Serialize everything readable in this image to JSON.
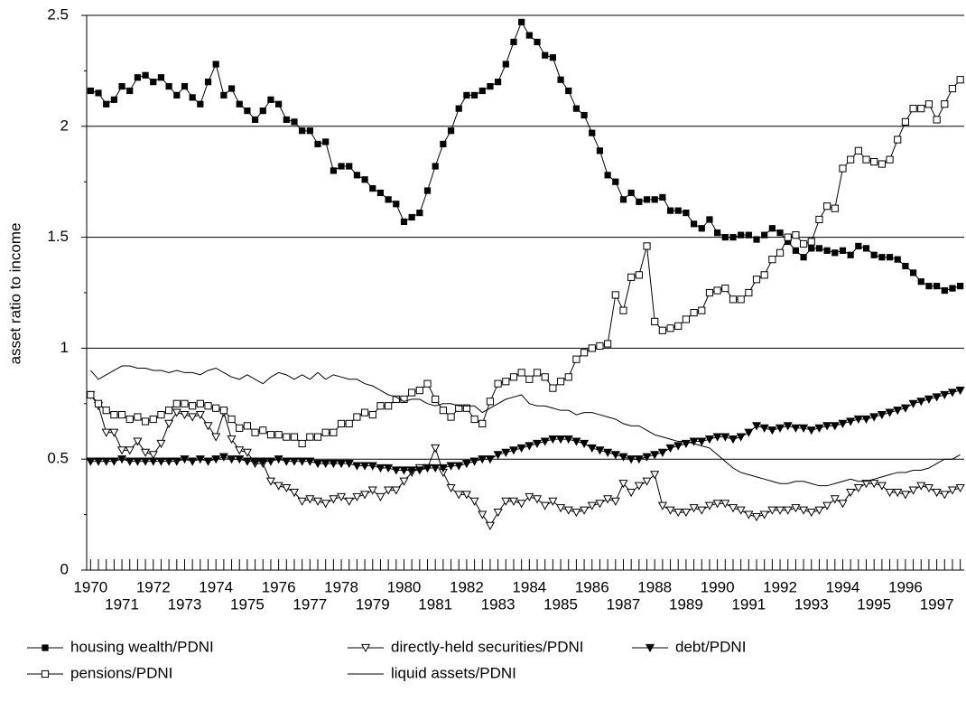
{
  "chart_data": {
    "type": "line",
    "y_label": "asset ratio to income",
    "ylim": [
      0,
      2.5
    ],
    "yticks": [
      0,
      0.5,
      1,
      1.5,
      2,
      2.5
    ],
    "grid": true,
    "categories": [
      "1970",
      null,
      null,
      null,
      "1971",
      null,
      null,
      null,
      "1972",
      null,
      null,
      null,
      "1973",
      null,
      null,
      null,
      "1974",
      null,
      null,
      null,
      "1975",
      null,
      null,
      null,
      "1976",
      null,
      null,
      null,
      "1977",
      null,
      null,
      null,
      "1978",
      null,
      null,
      null,
      "1979",
      null,
      null,
      null,
      "1980",
      null,
      null,
      null,
      "1981",
      null,
      null,
      null,
      "1982",
      null,
      null,
      null,
      "1983",
      null,
      null,
      null,
      "1984",
      null,
      null,
      null,
      "1985",
      null,
      null,
      null,
      "1986",
      null,
      null,
      null,
      "1987",
      null,
      null,
      null,
      "1988",
      null,
      null,
      null,
      "1989",
      null,
      null,
      null,
      "1990",
      null,
      null,
      null,
      "1991",
      null,
      null,
      null,
      "1992",
      null,
      null,
      null,
      "1993",
      null,
      null,
      null,
      "1994",
      null,
      null,
      null,
      "1995",
      null,
      null,
      null,
      "1996",
      null,
      null,
      null,
      "1997",
      null,
      null,
      null
    ],
    "series": [
      {
        "name": "housing wealth/PDNI",
        "color": "#000000",
        "marker": "square-filled",
        "values": [
          2.16,
          2.15,
          2.1,
          2.12,
          2.18,
          2.16,
          2.22,
          2.23,
          2.2,
          2.22,
          2.18,
          2.14,
          2.18,
          2.13,
          2.1,
          2.2,
          2.28,
          2.14,
          2.17,
          2.1,
          2.07,
          2.03,
          2.07,
          2.12,
          2.1,
          2.03,
          2.02,
          1.98,
          1.98,
          1.92,
          1.93,
          1.8,
          1.82,
          1.82,
          1.78,
          1.76,
          1.72,
          1.7,
          1.67,
          1.65,
          1.57,
          1.59,
          1.61,
          1.71,
          1.82,
          1.92,
          1.98,
          2.08,
          2.14,
          2.14,
          2.16,
          2.18,
          2.2,
          2.28,
          2.38,
          2.47,
          2.41,
          2.38,
          2.32,
          2.31,
          2.21,
          2.16,
          2.08,
          2.05,
          1.97,
          1.89,
          1.78,
          1.75,
          1.67,
          1.7,
          1.66,
          1.67,
          1.67,
          1.68,
          1.62,
          1.62,
          1.61,
          1.56,
          1.54,
          1.58,
          1.52,
          1.5,
          1.5,
          1.51,
          1.51,
          1.49,
          1.51,
          1.54,
          1.52,
          1.48,
          1.44,
          1.41,
          1.45,
          1.45,
          1.44,
          1.43,
          1.44,
          1.42,
          1.46,
          1.45,
          1.42,
          1.41,
          1.41,
          1.4,
          1.37,
          1.34,
          1.3,
          1.28,
          1.28,
          1.26,
          1.27,
          1.28
        ]
      },
      {
        "name": "directly-held securities/PDNI",
        "color": "#000000",
        "marker": "triangle-open",
        "values": [
          0.79,
          0.74,
          0.62,
          0.62,
          0.54,
          0.54,
          0.58,
          0.53,
          0.52,
          0.57,
          0.66,
          0.71,
          0.7,
          0.69,
          0.7,
          0.65,
          0.6,
          0.71,
          0.59,
          0.54,
          0.53,
          0.48,
          0.48,
          0.4,
          0.38,
          0.37,
          0.35,
          0.31,
          0.32,
          0.31,
          0.3,
          0.32,
          0.33,
          0.31,
          0.33,
          0.34,
          0.36,
          0.33,
          0.36,
          0.36,
          0.4,
          0.44,
          0.46,
          0.46,
          0.55,
          0.44,
          0.37,
          0.34,
          0.34,
          0.31,
          0.25,
          0.2,
          0.26,
          0.31,
          0.31,
          0.3,
          0.33,
          0.32,
          0.29,
          0.31,
          0.28,
          0.27,
          0.26,
          0.27,
          0.29,
          0.3,
          0.32,
          0.31,
          0.39,
          0.35,
          0.38,
          0.4,
          0.43,
          0.29,
          0.27,
          0.26,
          0.26,
          0.28,
          0.27,
          0.29,
          0.3,
          0.3,
          0.28,
          0.27,
          0.25,
          0.24,
          0.25,
          0.27,
          0.27,
          0.27,
          0.28,
          0.27,
          0.26,
          0.27,
          0.29,
          0.32,
          0.3,
          0.35,
          0.37,
          0.39,
          0.39,
          0.38,
          0.35,
          0.35,
          0.34,
          0.36,
          0.38,
          0.37,
          0.35,
          0.34,
          0.36,
          0.37
        ]
      },
      {
        "name": "debt/PDNI",
        "color": "#000000",
        "marker": "triangle-filled",
        "values": [
          0.49,
          0.49,
          0.49,
          0.49,
          0.5,
          0.49,
          0.49,
          0.49,
          0.49,
          0.49,
          0.49,
          0.49,
          0.5,
          0.49,
          0.5,
          0.49,
          0.5,
          0.51,
          0.5,
          0.5,
          0.49,
          0.49,
          0.49,
          0.49,
          0.5,
          0.49,
          0.49,
          0.49,
          0.49,
          0.48,
          0.48,
          0.48,
          0.48,
          0.48,
          0.47,
          0.47,
          0.47,
          0.46,
          0.46,
          0.45,
          0.45,
          0.45,
          0.45,
          0.46,
          0.46,
          0.46,
          0.47,
          0.47,
          0.48,
          0.49,
          0.5,
          0.5,
          0.52,
          0.53,
          0.54,
          0.55,
          0.56,
          0.57,
          0.58,
          0.59,
          0.59,
          0.59,
          0.58,
          0.57,
          0.55,
          0.54,
          0.53,
          0.52,
          0.51,
          0.5,
          0.5,
          0.51,
          0.52,
          0.53,
          0.55,
          0.56,
          0.57,
          0.58,
          0.58,
          0.59,
          0.6,
          0.6,
          0.59,
          0.6,
          0.62,
          0.65,
          0.64,
          0.63,
          0.64,
          0.65,
          0.64,
          0.64,
          0.63,
          0.64,
          0.65,
          0.65,
          0.66,
          0.67,
          0.68,
          0.68,
          0.69,
          0.7,
          0.71,
          0.72,
          0.73,
          0.75,
          0.76,
          0.77,
          0.78,
          0.79,
          0.8,
          0.81
        ]
      },
      {
        "name": "pensions/PDNI",
        "color": "#000000",
        "marker": "square-open",
        "values": [
          0.79,
          0.75,
          0.72,
          0.7,
          0.7,
          0.68,
          0.69,
          0.67,
          0.68,
          0.7,
          0.72,
          0.75,
          0.75,
          0.74,
          0.75,
          0.74,
          0.73,
          0.72,
          0.68,
          0.64,
          0.65,
          0.62,
          0.63,
          0.61,
          0.61,
          0.6,
          0.6,
          0.57,
          0.6,
          0.6,
          0.62,
          0.62,
          0.66,
          0.66,
          0.69,
          0.71,
          0.7,
          0.74,
          0.74,
          0.77,
          0.77,
          0.8,
          0.81,
          0.84,
          0.77,
          0.72,
          0.69,
          0.73,
          0.73,
          0.68,
          0.66,
          0.76,
          0.84,
          0.85,
          0.87,
          0.89,
          0.86,
          0.89,
          0.87,
          0.82,
          0.85,
          0.87,
          0.95,
          0.98,
          1.0,
          1.01,
          1.02,
          1.24,
          1.17,
          1.32,
          1.33,
          1.46,
          1.12,
          1.08,
          1.09,
          1.1,
          1.13,
          1.16,
          1.17,
          1.25,
          1.26,
          1.27,
          1.22,
          1.22,
          1.25,
          1.31,
          1.33,
          1.4,
          1.43,
          1.5,
          1.51,
          1.47,
          1.48,
          1.58,
          1.64,
          1.63,
          1.81,
          1.85,
          1.89,
          1.85,
          1.84,
          1.83,
          1.85,
          1.94,
          2.02,
          2.08,
          2.08,
          2.1,
          2.03,
          2.1,
          2.17,
          2.21
        ]
      },
      {
        "name": "liquid assets/PDNI",
        "color": "#000000",
        "marker": "none",
        "values": [
          0.9,
          0.86,
          0.88,
          0.9,
          0.92,
          0.92,
          0.91,
          0.91,
          0.9,
          0.9,
          0.89,
          0.9,
          0.89,
          0.89,
          0.88,
          0.9,
          0.91,
          0.89,
          0.87,
          0.86,
          0.88,
          0.86,
          0.84,
          0.87,
          0.89,
          0.88,
          0.86,
          0.88,
          0.86,
          0.89,
          0.86,
          0.88,
          0.87,
          0.86,
          0.86,
          0.84,
          0.83,
          0.81,
          0.79,
          0.78,
          0.76,
          0.77,
          0.77,
          0.75,
          0.74,
          0.75,
          0.75,
          0.74,
          0.74,
          0.74,
          0.71,
          0.73,
          0.75,
          0.77,
          0.78,
          0.79,
          0.75,
          0.74,
          0.74,
          0.73,
          0.72,
          0.72,
          0.7,
          0.71,
          0.71,
          0.7,
          0.69,
          0.68,
          0.66,
          0.65,
          0.65,
          0.63,
          0.61,
          0.6,
          0.59,
          0.58,
          0.58,
          0.57,
          0.56,
          0.55,
          0.52,
          0.49,
          0.46,
          0.44,
          0.43,
          0.42,
          0.41,
          0.4,
          0.39,
          0.39,
          0.4,
          0.4,
          0.39,
          0.38,
          0.38,
          0.39,
          0.4,
          0.41,
          0.4,
          0.4,
          0.41,
          0.42,
          0.43,
          0.44,
          0.44,
          0.45,
          0.45,
          0.46,
          0.48,
          0.5,
          0.5,
          0.52
        ]
      }
    ]
  }
}
